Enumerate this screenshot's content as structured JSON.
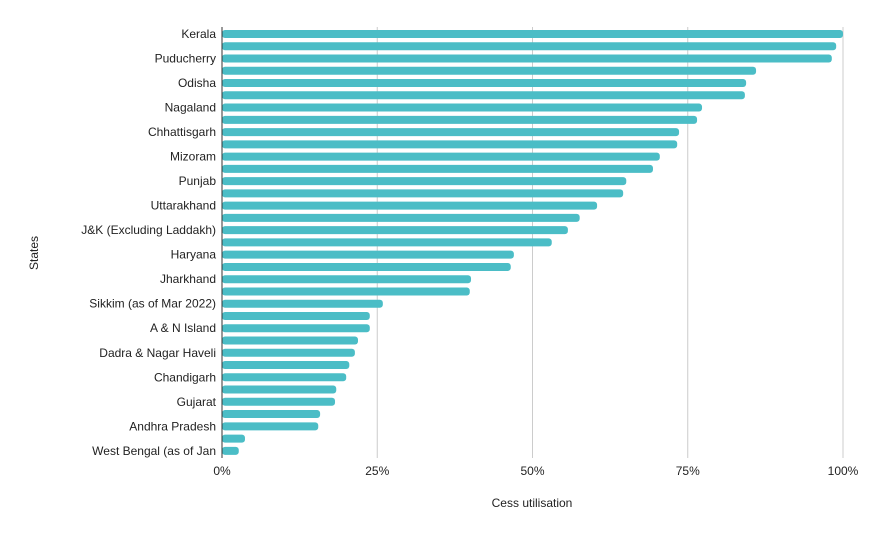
{
  "chart_data": {
    "type": "bar",
    "orientation": "horizontal",
    "xlabel": "Cess utilisation",
    "ylabel": "States",
    "xlim": [
      0,
      100
    ],
    "xticks": [
      "0%",
      "25%",
      "50%",
      "75%",
      "100%"
    ],
    "grid": true,
    "bar_color": "#4bbdc6",
    "categories": [
      "Kerala",
      "",
      "Puducherry",
      "",
      "Odisha",
      "",
      "Nagaland",
      "",
      "Chhattisgarh",
      "",
      "Mizoram",
      "",
      "Punjab",
      "",
      "Uttarakhand",
      "",
      "J&K (Excluding Laddakh)",
      "",
      "Haryana",
      "",
      "Jharkhand",
      "",
      "Sikkim (as of Mar 2022)",
      "",
      "A & N Island",
      "",
      "Dadra & Nagar Haveli",
      "",
      "Chandigarh",
      "",
      "Gujarat",
      "",
      "Andhra Pradesh",
      "",
      "West Bengal (as of Jan"
    ],
    "values": [
      100,
      98.9,
      98.2,
      86,
      84.4,
      84.2,
      77.3,
      76.5,
      73.6,
      73.3,
      70.5,
      69.4,
      65.1,
      64.6,
      60.4,
      57.6,
      55.7,
      53.1,
      47,
      46.5,
      40.1,
      39.9,
      25.9,
      23.8,
      23.8,
      21.9,
      21.4,
      20.5,
      20,
      18.4,
      18.2,
      15.8,
      15.5,
      3.7,
      2.7
    ]
  }
}
